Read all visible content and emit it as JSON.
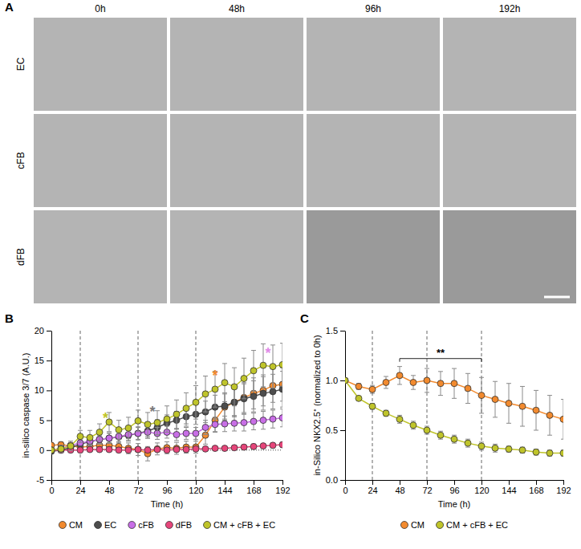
{
  "panel_a": {
    "panel": "A",
    "columns": [
      "0h",
      "48h",
      "96h",
      "192h"
    ],
    "rows": [
      "EC",
      "cFB",
      "dFB"
    ]
  },
  "chart_data": [
    {
      "type": "line",
      "panel": "B",
      "x_label": "Time (h)",
      "y_label": "in-silico caspase 3/7 (A.U.)",
      "x": [
        0,
        8,
        16,
        24,
        32,
        40,
        48,
        56,
        64,
        72,
        80,
        88,
        96,
        104,
        112,
        120,
        128,
        136,
        144,
        152,
        160,
        168,
        176,
        184,
        192
      ],
      "xlim": [
        0,
        192
      ],
      "xticks": [
        0,
        24,
        48,
        72,
        96,
        120,
        144,
        168,
        192
      ],
      "ylim": [
        -5,
        20
      ],
      "yticks": [
        -5,
        0,
        5,
        10,
        15,
        20
      ],
      "marker": "circle",
      "legend": "bottom",
      "reference_lines": {
        "x": [
          24,
          72,
          120
        ],
        "y": [
          0
        ]
      },
      "annotations": [
        {
          "text": "*",
          "x": 45,
          "y": 5.6,
          "color": "#bfc42a"
        },
        {
          "text": "*",
          "x": 84,
          "y": 6.7,
          "color": "#7a7a7a"
        },
        {
          "text": "*",
          "x": 136,
          "y": 12.8,
          "color": "#f28a2e"
        },
        {
          "text": "*",
          "x": 180,
          "y": 16.5,
          "color": "#e08ae8"
        }
      ],
      "series": [
        {
          "name": "CM",
          "color": "#f28a2e",
          "values": [
            0.8,
            0.9,
            0.7,
            0.5,
            0.6,
            0.8,
            0.8,
            0.6,
            0.3,
            0.1,
            -0.6,
            0.2,
            0.4,
            0.3,
            0.5,
            0.5,
            2.5,
            5.0,
            7.2,
            8.0,
            8.8,
            9.5,
            10.0,
            10.8,
            11.0
          ],
          "errors": [
            0.3,
            0.5,
            0.5,
            0.6,
            0.6,
            0.7,
            0.7,
            0.8,
            0.9,
            1.0,
            1.2,
            1.0,
            1.0,
            1.0,
            1.0,
            1.0,
            1.5,
            2.0,
            2.2,
            2.4,
            2.5,
            2.6,
            2.6,
            2.8,
            2.8
          ]
        },
        {
          "name": "EC",
          "color": "#4d4d4d",
          "values": [
            -0.2,
            0.0,
            0.4,
            1.0,
            1.4,
            1.8,
            2.0,
            2.2,
            2.5,
            2.8,
            3.2,
            3.8,
            4.5,
            5.0,
            5.6,
            6.0,
            6.4,
            7.2,
            7.4,
            8.0,
            8.6,
            9.0,
            9.5,
            9.8,
            10.2
          ],
          "errors": [
            0.3,
            0.4,
            0.5,
            0.6,
            0.7,
            0.8,
            0.9,
            1.0,
            1.0,
            1.1,
            1.2,
            1.3,
            1.4,
            1.5,
            1.6,
            1.7,
            1.8,
            2.0,
            2.2,
            2.4,
            2.5,
            2.6,
            2.8,
            2.9,
            3.0
          ]
        },
        {
          "name": "cFB",
          "color": "#c86ee6",
          "values": [
            0.0,
            0.3,
            0.8,
            1.2,
            1.5,
            1.8,
            2.0,
            2.3,
            2.6,
            2.8,
            3.0,
            2.8,
            3.0,
            2.6,
            2.8,
            2.8,
            3.8,
            4.3,
            4.4,
            4.5,
            4.6,
            4.8,
            5.0,
            5.2,
            5.4
          ],
          "errors": [
            0.2,
            0.3,
            0.4,
            0.5,
            0.6,
            0.7,
            0.8,
            0.9,
            1.0,
            1.0,
            1.0,
            1.0,
            1.0,
            1.0,
            1.0,
            1.0,
            1.2,
            1.2,
            1.3,
            1.3,
            1.4,
            1.4,
            1.5,
            1.5,
            1.5
          ]
        },
        {
          "name": "dFB",
          "color": "#e6457a",
          "values": [
            0.0,
            0.0,
            0.0,
            0.0,
            0.1,
            0.1,
            0.1,
            0.0,
            0.0,
            0.1,
            0.0,
            0.1,
            0.0,
            0.1,
            0.1,
            0.2,
            0.2,
            0.3,
            0.3,
            0.4,
            0.5,
            0.6,
            0.7,
            0.8,
            0.9
          ],
          "errors": [
            0.2,
            0.2,
            0.2,
            0.2,
            0.2,
            0.2,
            0.2,
            0.2,
            0.2,
            0.2,
            0.2,
            0.2,
            0.2,
            0.2,
            0.2,
            0.3,
            0.3,
            0.3,
            0.3,
            0.3,
            0.3,
            0.4,
            0.4,
            0.4,
            0.4
          ]
        },
        {
          "name": "CM + cFB + EC",
          "color": "#bfc42a",
          "values": [
            0.0,
            0.2,
            0.7,
            2.3,
            2.1,
            3.0,
            4.7,
            3.4,
            3.7,
            4.9,
            4.3,
            4.6,
            5.2,
            6.0,
            7.0,
            8.0,
            9.4,
            10.2,
            11.3,
            10.6,
            12.0,
            13.3,
            14.2,
            14.0,
            14.3
          ],
          "errors": [
            0.4,
            0.6,
            0.8,
            1.0,
            1.2,
            1.4,
            1.6,
            1.6,
            1.8,
            1.8,
            2.0,
            2.0,
            2.2,
            2.4,
            2.6,
            2.8,
            3.0,
            3.0,
            3.2,
            3.2,
            3.4,
            3.4,
            3.6,
            3.6,
            3.6
          ]
        }
      ]
    },
    {
      "type": "line",
      "panel": "C",
      "x_label": "Time (h)",
      "y_label": "in-Silico NKX2.5⁺ (normalized to 0h)",
      "x": [
        0,
        12,
        24,
        36,
        48,
        60,
        72,
        84,
        96,
        108,
        120,
        132,
        144,
        156,
        168,
        180,
        192
      ],
      "xlim": [
        0,
        192
      ],
      "xticks": [
        0,
        24,
        48,
        72,
        96,
        120,
        144,
        168,
        192
      ],
      "ylim": [
        0,
        1.5
      ],
      "yticks": [
        {
          "value": 0,
          "label": "0.0"
        },
        {
          "value": 0.5,
          "label": "0.5"
        },
        {
          "value": 1,
          "label": "1.0"
        },
        {
          "value": 1.5,
          "label": "1.5"
        }
      ],
      "marker": "circle",
      "legend": "bottom",
      "reference_lines": {
        "x": [
          24,
          72,
          120
        ]
      },
      "brackets": [
        {
          "text": "**",
          "x1": 48,
          "x2": 120,
          "y": 1.22
        }
      ],
      "series": [
        {
          "name": "CM",
          "color": "#f28a2e",
          "values": [
            1.0,
            0.94,
            0.91,
            0.98,
            1.05,
            0.98,
            1.0,
            0.97,
            0.97,
            0.92,
            0.85,
            0.81,
            0.77,
            0.74,
            0.7,
            0.65,
            0.61
          ],
          "errors": [
            0.0,
            0.03,
            0.04,
            0.06,
            0.09,
            0.07,
            0.12,
            0.12,
            0.15,
            0.15,
            0.18,
            0.18,
            0.2,
            0.2,
            0.2,
            0.2,
            0.2
          ]
        },
        {
          "name": "CM + cFB + EC",
          "color": "#bfc42a",
          "values": [
            1.0,
            0.82,
            0.74,
            0.67,
            0.61,
            0.55,
            0.5,
            0.45,
            0.41,
            0.37,
            0.34,
            0.32,
            0.31,
            0.3,
            0.28,
            0.27,
            0.27
          ],
          "errors": [
            0.0,
            0.02,
            0.03,
            0.03,
            0.04,
            0.04,
            0.04,
            0.04,
            0.04,
            0.04,
            0.04,
            0.04,
            0.03,
            0.03,
            0.03,
            0.03,
            0.03
          ]
        }
      ]
    }
  ]
}
